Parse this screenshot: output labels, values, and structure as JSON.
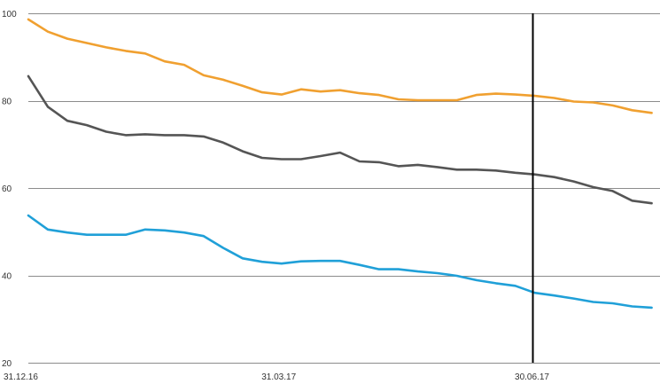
{
  "chart_data": {
    "type": "line",
    "title": "",
    "xlabel": "",
    "ylabel": "",
    "x_tick_labels": [
      "31.12.16",
      "31.03.17",
      "30.06.17"
    ],
    "x_tick_dates": [
      "2016-12-31",
      "2017-03-31",
      "2017-06-30"
    ],
    "y_tick_labels": [
      "20",
      "40",
      "60",
      "80",
      "100"
    ],
    "y_ticks": [
      20,
      40,
      60,
      80,
      100
    ],
    "ylim": [
      20,
      100
    ],
    "xlim": [
      "2016-12-31",
      "2017-08-15"
    ],
    "grid": "horizontal",
    "marker_line": {
      "x": "2017-06-30",
      "color": "#000000"
    },
    "x": [
      "2016-12-31",
      "2017-01-07",
      "2017-01-14",
      "2017-01-21",
      "2017-01-28",
      "2017-02-04",
      "2017-02-11",
      "2017-02-18",
      "2017-02-25",
      "2017-03-04",
      "2017-03-11",
      "2017-03-18",
      "2017-03-25",
      "2017-04-01",
      "2017-04-08",
      "2017-04-15",
      "2017-04-22",
      "2017-04-29",
      "2017-05-06",
      "2017-05-13",
      "2017-05-20",
      "2017-05-27",
      "2017-06-03",
      "2017-06-10",
      "2017-06-17",
      "2017-06-24",
      "2017-07-01",
      "2017-07-08",
      "2017-07-15",
      "2017-07-22",
      "2017-07-29",
      "2017-08-05",
      "2017-08-12"
    ],
    "series": [
      {
        "color": "#f0a030",
        "values": [
          98.6,
          95.8,
          94.2,
          93.2,
          92.2,
          91.4,
          90.8,
          89.0,
          88.2,
          85.8,
          84.8,
          83.4,
          81.9,
          81.4,
          82.6,
          82.1,
          82.4,
          81.7,
          81.3,
          80.3,
          80.1,
          80.1,
          80.1,
          81.3,
          81.6,
          81.4,
          81.1,
          80.6,
          79.8,
          79.6,
          78.9,
          77.8,
          77.2
        ]
      },
      {
        "color": "#555555",
        "values": [
          85.6,
          78.6,
          75.4,
          74.4,
          72.9,
          72.1,
          72.3,
          72.1,
          72.1,
          71.8,
          70.4,
          68.4,
          66.9,
          66.6,
          66.6,
          67.3,
          68.1,
          66.1,
          65.9,
          65.0,
          65.3,
          64.8,
          64.2,
          64.2,
          64.0,
          63.5,
          63.1,
          62.5,
          61.5,
          60.2,
          59.3,
          57.1,
          56.5
        ]
      },
      {
        "color": "#20a0d8",
        "values": [
          53.7,
          50.5,
          49.8,
          49.3,
          49.3,
          49.3,
          50.5,
          50.3,
          49.8,
          49.0,
          46.3,
          43.9,
          43.1,
          42.7,
          43.2,
          43.3,
          43.3,
          42.4,
          41.4,
          41.4,
          40.9,
          40.5,
          39.9,
          38.9,
          38.2,
          37.6,
          36.0,
          35.4,
          34.7,
          33.9,
          33.6,
          32.9,
          32.6
        ]
      }
    ]
  }
}
